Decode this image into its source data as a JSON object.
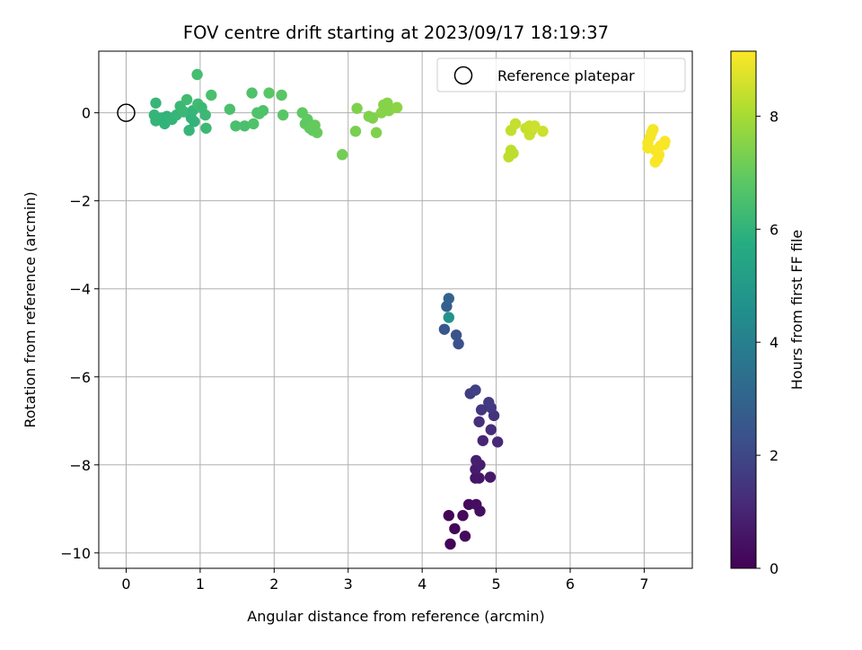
{
  "chart_data": {
    "type": "scatter",
    "title": "FOV centre drift starting at 2023/09/17 18:19:37",
    "xlabel": "Angular distance from reference (arcmin)",
    "ylabel": "Rotation from reference (arcmin)",
    "xlim": [
      -0.37,
      7.65
    ],
    "ylim": [
      -10.35,
      1.4
    ],
    "xticks": [
      "0",
      "1",
      "2",
      "3",
      "4",
      "5",
      "6",
      "7"
    ],
    "yticks": [
      "−10",
      "−8",
      "−6",
      "−4",
      "−2",
      "0"
    ],
    "xtick_values": [
      0,
      1,
      2,
      3,
      4,
      5,
      6,
      7
    ],
    "ytick_values": [
      -10,
      -8,
      -6,
      -4,
      -2,
      0
    ],
    "grid": true,
    "legend": {
      "position": "top-right",
      "entries": [
        "Reference platepar"
      ]
    },
    "reference_point": {
      "x": 0,
      "y": 0
    },
    "colorbar": {
      "label": "Hours from first FF file",
      "colormap": "viridis",
      "range": [
        0,
        9.15
      ],
      "ticks": [
        "0",
        "2",
        "4",
        "6",
        "8"
      ],
      "tick_values": [
        0,
        2,
        4,
        6,
        8
      ]
    },
    "points": [
      {
        "x": 4.38,
        "y": -9.8,
        "t": 0.05
      },
      {
        "x": 4.36,
        "y": -9.15,
        "t": 0.1
      },
      {
        "x": 4.44,
        "y": -9.45,
        "t": 0.15
      },
      {
        "x": 4.55,
        "y": -9.15,
        "t": 0.2
      },
      {
        "x": 4.58,
        "y": -9.62,
        "t": 0.25
      },
      {
        "x": 4.63,
        "y": -8.9,
        "t": 0.3
      },
      {
        "x": 4.73,
        "y": -8.9,
        "t": 0.35
      },
      {
        "x": 4.78,
        "y": -9.05,
        "t": 0.4
      },
      {
        "x": 4.72,
        "y": -8.3,
        "t": 0.55
      },
      {
        "x": 4.77,
        "y": -8.3,
        "t": 0.6
      },
      {
        "x": 4.92,
        "y": -8.28,
        "t": 0.65
      },
      {
        "x": 4.72,
        "y": -8.1,
        "t": 0.72
      },
      {
        "x": 4.78,
        "y": -8.0,
        "t": 0.8
      },
      {
        "x": 4.73,
        "y": -7.9,
        "t": 0.85
      },
      {
        "x": 4.82,
        "y": -7.45,
        "t": 1.0
      },
      {
        "x": 5.02,
        "y": -7.48,
        "t": 1.1
      },
      {
        "x": 4.93,
        "y": -7.2,
        "t": 1.2
      },
      {
        "x": 4.77,
        "y": -7.02,
        "t": 1.3
      },
      {
        "x": 4.97,
        "y": -6.88,
        "t": 1.4
      },
      {
        "x": 4.8,
        "y": -6.75,
        "t": 1.5
      },
      {
        "x": 4.93,
        "y": -6.7,
        "t": 1.55
      },
      {
        "x": 4.9,
        "y": -6.58,
        "t": 1.62
      },
      {
        "x": 4.65,
        "y": -6.38,
        "t": 1.7
      },
      {
        "x": 4.72,
        "y": -6.3,
        "t": 1.8
      },
      {
        "x": 4.49,
        "y": -5.25,
        "t": 2.3
      },
      {
        "x": 4.46,
        "y": -5.05,
        "t": 2.4
      },
      {
        "x": 4.3,
        "y": -4.92,
        "t": 2.5
      },
      {
        "x": 4.36,
        "y": -4.65,
        "t": 4.7
      },
      {
        "x": 4.33,
        "y": -4.4,
        "t": 2.8
      },
      {
        "x": 4.36,
        "y": -4.22,
        "t": 2.95
      },
      {
        "x": 0.4,
        "y": 0.22,
        "t": 6.1
      },
      {
        "x": 0.38,
        "y": -0.05,
        "t": 6.1
      },
      {
        "x": 0.4,
        "y": -0.18,
        "t": 6.05
      },
      {
        "x": 0.48,
        "y": -0.12,
        "t": 6.05
      },
      {
        "x": 0.52,
        "y": -0.25,
        "t": 6.0
      },
      {
        "x": 0.55,
        "y": -0.08,
        "t": 6.0
      },
      {
        "x": 0.62,
        "y": -0.15,
        "t": 6.05
      },
      {
        "x": 0.68,
        "y": -0.05,
        "t": 6.1
      },
      {
        "x": 0.73,
        "y": 0.15,
        "t": 6.2
      },
      {
        "x": 0.78,
        "y": 0.02,
        "t": 6.2
      },
      {
        "x": 0.82,
        "y": 0.3,
        "t": 6.3
      },
      {
        "x": 0.85,
        "y": -0.4,
        "t": 6.1
      },
      {
        "x": 0.88,
        "y": -0.12,
        "t": 6.0
      },
      {
        "x": 0.92,
        "y": -0.2,
        "t": 6.0
      },
      {
        "x": 0.9,
        "y": 0.05,
        "t": 6.1
      },
      {
        "x": 0.97,
        "y": 0.2,
        "t": 6.3
      },
      {
        "x": 0.96,
        "y": 0.87,
        "t": 6.4
      },
      {
        "x": 1.02,
        "y": 0.12,
        "t": 6.2
      },
      {
        "x": 1.07,
        "y": -0.05,
        "t": 6.2
      },
      {
        "x": 1.08,
        "y": -0.35,
        "t": 6.2
      },
      {
        "x": 1.15,
        "y": 0.4,
        "t": 6.5
      },
      {
        "x": 1.4,
        "y": 0.08,
        "t": 6.5
      },
      {
        "x": 1.48,
        "y": -0.3,
        "t": 6.5
      },
      {
        "x": 1.6,
        "y": -0.3,
        "t": 6.5
      },
      {
        "x": 1.7,
        "y": 0.45,
        "t": 6.6
      },
      {
        "x": 1.72,
        "y": -0.25,
        "t": 6.6
      },
      {
        "x": 1.77,
        "y": 0.0,
        "t": 6.6
      },
      {
        "x": 1.8,
        "y": -0.02,
        "t": 6.6
      },
      {
        "x": 1.85,
        "y": 0.05,
        "t": 6.6
      },
      {
        "x": 1.93,
        "y": 0.45,
        "t": 6.8
      },
      {
        "x": 2.1,
        "y": 0.4,
        "t": 6.8
      },
      {
        "x": 2.12,
        "y": -0.05,
        "t": 6.8
      },
      {
        "x": 2.38,
        "y": 0.0,
        "t": 6.9
      },
      {
        "x": 2.42,
        "y": -0.25,
        "t": 6.9
      },
      {
        "x": 2.45,
        "y": -0.15,
        "t": 6.9
      },
      {
        "x": 2.48,
        "y": -0.35,
        "t": 6.95
      },
      {
        "x": 2.52,
        "y": -0.4,
        "t": 6.95
      },
      {
        "x": 2.55,
        "y": -0.28,
        "t": 7.0
      },
      {
        "x": 2.58,
        "y": -0.45,
        "t": 7.0
      },
      {
        "x": 2.92,
        "y": -0.95,
        "t": 7.2
      },
      {
        "x": 3.1,
        "y": -0.42,
        "t": 7.3
      },
      {
        "x": 3.12,
        "y": 0.1,
        "t": 7.4
      },
      {
        "x": 3.28,
        "y": -0.08,
        "t": 7.4
      },
      {
        "x": 3.33,
        "y": -0.12,
        "t": 7.4
      },
      {
        "x": 3.38,
        "y": -0.45,
        "t": 7.4
      },
      {
        "x": 3.45,
        "y": 0.0,
        "t": 7.5
      },
      {
        "x": 3.48,
        "y": 0.18,
        "t": 7.5
      },
      {
        "x": 3.5,
        "y": 0.1,
        "t": 7.5
      },
      {
        "x": 3.53,
        "y": 0.22,
        "t": 7.5
      },
      {
        "x": 3.55,
        "y": 0.05,
        "t": 7.5
      },
      {
        "x": 3.66,
        "y": 0.12,
        "t": 7.6
      },
      {
        "x": 5.17,
        "y": -1.0,
        "t": 8.3
      },
      {
        "x": 5.2,
        "y": -0.85,
        "t": 8.3
      },
      {
        "x": 5.23,
        "y": -0.92,
        "t": 8.3
      },
      {
        "x": 5.2,
        "y": -0.4,
        "t": 8.35
      },
      {
        "x": 5.26,
        "y": -0.25,
        "t": 8.4
      },
      {
        "x": 5.4,
        "y": -0.35,
        "t": 8.4
      },
      {
        "x": 5.45,
        "y": -0.3,
        "t": 8.45
      },
      {
        "x": 5.45,
        "y": -0.5,
        "t": 8.45
      },
      {
        "x": 5.48,
        "y": -0.4,
        "t": 8.45
      },
      {
        "x": 5.52,
        "y": -0.3,
        "t": 8.5
      },
      {
        "x": 5.63,
        "y": -0.42,
        "t": 8.5
      },
      {
        "x": 7.05,
        "y": -0.8,
        "t": 9.05
      },
      {
        "x": 7.08,
        "y": -0.55,
        "t": 9.05
      },
      {
        "x": 7.1,
        "y": -0.45,
        "t": 9.05
      },
      {
        "x": 7.12,
        "y": -0.38,
        "t": 9.05
      },
      {
        "x": 7.05,
        "y": -0.68,
        "t": 9.05
      },
      {
        "x": 7.15,
        "y": -0.85,
        "t": 9.1
      },
      {
        "x": 7.18,
        "y": -1.05,
        "t": 9.1
      },
      {
        "x": 7.15,
        "y": -1.12,
        "t": 9.1
      },
      {
        "x": 7.2,
        "y": -0.95,
        "t": 9.1
      },
      {
        "x": 7.22,
        "y": -0.75,
        "t": 9.1
      },
      {
        "x": 7.27,
        "y": -0.72,
        "t": 9.1
      },
      {
        "x": 7.28,
        "y": -0.65,
        "t": 9.1
      }
    ]
  }
}
